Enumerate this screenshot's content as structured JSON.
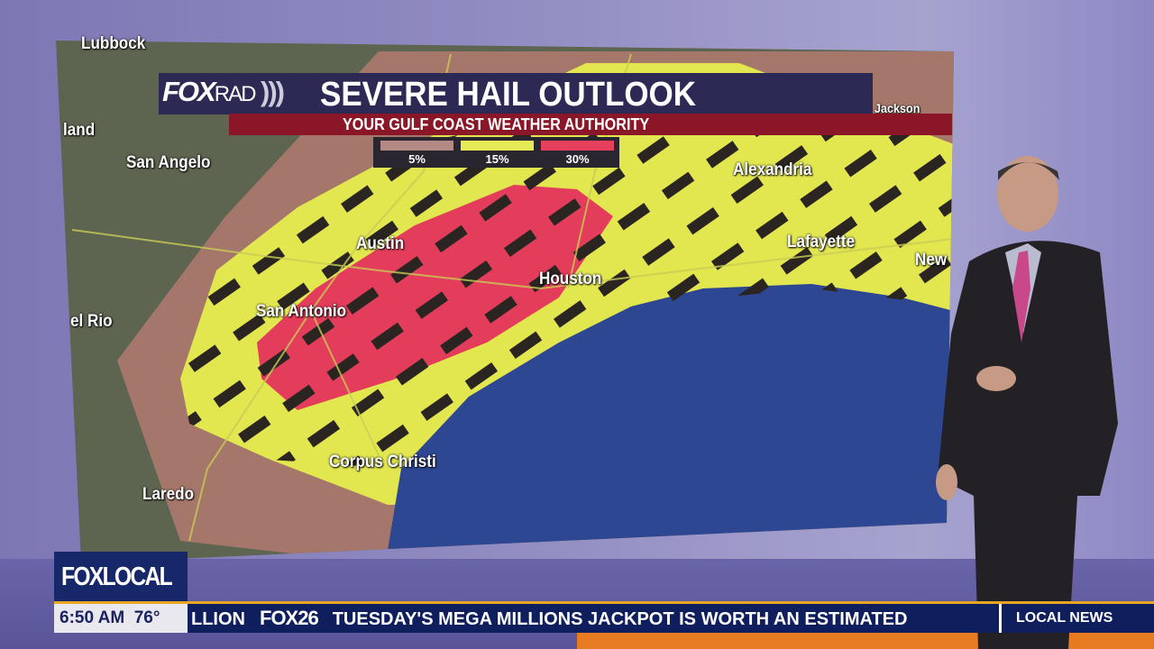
{
  "header": {
    "brand": "FOX",
    "brand_suffix": "RAD",
    "title": "SEVERE HAIL OUTLOOK",
    "subtitle": "YOUR GULF COAST WEATHER AUTHORITY"
  },
  "legend": [
    {
      "label": "5%",
      "color": "#b58a86"
    },
    {
      "label": "15%",
      "color": "#e5ea55"
    },
    {
      "label": "30%",
      "color": "#e6405c"
    }
  ],
  "map": {
    "cities": [
      "Lubbock",
      "land",
      "San Angelo",
      "Austin",
      "San Antonio",
      "Houston",
      "Alexandria",
      "Lafayette",
      "New",
      "Jackson",
      "el Rio",
      "Laredo",
      "Corpus Christi"
    ]
  },
  "bug": {
    "logo": "FOXLOCAL"
  },
  "ticker": {
    "time": "6:50 AM",
    "temp": "76°",
    "lead": "LLION",
    "station": "FOX26",
    "headline": "TUESDAY'S MEGA MILLIONS JACKPOT IS WORTH AN ESTIMATED",
    "section": "LOCAL NEWS"
  }
}
